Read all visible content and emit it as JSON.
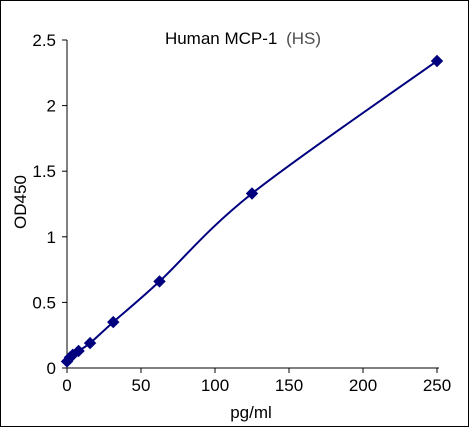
{
  "chart_data": {
    "type": "line",
    "title": "Human MCP-1",
    "title_suffix": "(HS)",
    "xlabel": "pg/ml",
    "ylabel": "OD450",
    "xlim": [
      0,
      250
    ],
    "ylim": [
      0,
      2.5
    ],
    "x_ticks": [
      0,
      50,
      100,
      150,
      200,
      250
    ],
    "y_ticks": [
      0,
      0.5,
      1,
      1.5,
      2,
      2.5
    ],
    "x_tick_labels": [
      "0",
      "50",
      "100",
      "150",
      "200",
      "250"
    ],
    "y_tick_labels": [
      "0",
      "0.5",
      "1",
      "1.5",
      "2",
      "2.5"
    ],
    "grid": false,
    "marker": "diamond",
    "series_color": "#00007f",
    "series": [
      {
        "x": [
          0,
          1.95,
          3.9,
          7.8,
          15.6,
          31.25,
          62.5,
          125,
          250
        ],
        "y": [
          0.05,
          0.08,
          0.1,
          0.13,
          0.19,
          0.35,
          0.66,
          1.33,
          2.34
        ]
      }
    ]
  }
}
